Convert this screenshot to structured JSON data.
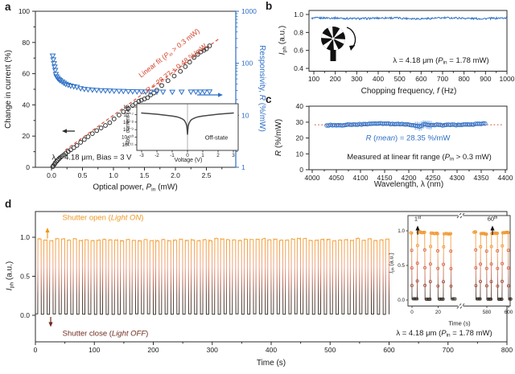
{
  "palette": {
    "blue": "#2d6fc6",
    "red": "#d6452e",
    "orange": "#f09a38",
    "orange_text": "#f0971f",
    "maroon": "#6e2a1c",
    "dark": "#1a1a1a",
    "frame": "#2b2b2b",
    "error_bar": "#adc8ec",
    "inset_curve": "#474747",
    "wave_bottom": "#3b352f",
    "wave_mid": "#c4705a",
    "wave_top": "#f4a033"
  },
  "text": {
    "a": {
      "letter": "a",
      "ylabel_left": [
        [
          "Change in current (%)",
          ""
        ]
      ],
      "ylabel_right": [
        [
          "Responsivity, ",
          ""
        ],
        [
          "R",
          "i"
        ],
        [
          " (%/mW)",
          ""
        ]
      ],
      "xlabel": [
        [
          "Optical power, ",
          ""
        ],
        [
          "P",
          "i"
        ],
        [
          "in",
          "sub"
        ],
        [
          " (mW)",
          ""
        ]
      ],
      "fit1": [
        [
          "Linear fit (",
          ""
        ],
        [
          "P",
          "i"
        ],
        [
          "in",
          "sub"
        ],
        [
          " > 0.3 mW)",
          ""
        ]
      ],
      "fit2": [
        [
          "R",
          "i"
        ],
        [
          " = 28.77 ± 0.48 %/mW",
          ""
        ]
      ],
      "bias": [
        [
          "λ = 4.18 μm, Bias = 3 V",
          ""
        ]
      ],
      "inset_ylabel": [
        [
          "Abs. current (A)",
          ""
        ]
      ],
      "inset_xlabel": [
        [
          "Voltage (V)",
          ""
        ]
      ],
      "inset_note": [
        [
          "Off-state",
          ""
        ]
      ]
    },
    "b": {
      "letter": "b",
      "ylabel": [
        [
          "I",
          "i"
        ],
        [
          "ph",
          "sub"
        ],
        [
          " (a.u.)",
          ""
        ]
      ],
      "xlabel": [
        [
          "Chopping frequency, ",
          ""
        ],
        [
          "f",
          "i"
        ],
        [
          " (Hz)",
          ""
        ]
      ],
      "note": [
        [
          "λ = 4.18 μm (",
          ""
        ],
        [
          "P",
          "i"
        ],
        [
          "in",
          "sub"
        ],
        [
          " = 1.78 mW)",
          ""
        ]
      ]
    },
    "c": {
      "letter": "c",
      "ylabel": [
        [
          "R",
          "i"
        ],
        [
          " (%/mW)",
          ""
        ]
      ],
      "xlabel": [
        [
          "Wavelength, λ (nm)",
          ""
        ]
      ],
      "mean": [
        [
          "R",
          "i"
        ],
        [
          " (",
          ""
        ],
        [
          "mean",
          "i"
        ],
        [
          ") = 28.35 %/mW",
          ""
        ]
      ],
      "note": [
        [
          "Measured at linear fit range (",
          ""
        ],
        [
          "P",
          "i"
        ],
        [
          "in",
          "sub"
        ],
        [
          " > 0.3 mW)",
          ""
        ]
      ]
    },
    "d": {
      "letter": "d",
      "ylabel": [
        [
          "I",
          "i"
        ],
        [
          "ph",
          "sub"
        ],
        [
          " (a.u.)",
          ""
        ]
      ],
      "xlabel": [
        [
          "Time (s)",
          ""
        ]
      ],
      "open": [
        [
          "Shutter open (",
          ""
        ],
        [
          "Light ON",
          "i"
        ],
        [
          ")",
          ""
        ]
      ],
      "close": [
        [
          "Shutter close (",
          ""
        ],
        [
          "Light OFF",
          "i"
        ],
        [
          ")",
          ""
        ]
      ],
      "note": [
        [
          "λ = 4.18 μm (",
          ""
        ],
        [
          "P",
          "i"
        ],
        [
          "in",
          "sub"
        ],
        [
          " = 1.78 mW)",
          ""
        ]
      ],
      "inset_ylabel": [
        [
          "I",
          "i"
        ],
        [
          "ph",
          "sub"
        ],
        [
          " (a.u.)",
          ""
        ]
      ],
      "inset_xlabel": [
        [
          "Time (s)",
          ""
        ]
      ],
      "first": [
        [
          "1",
          ""
        ],
        [
          "st",
          "sup"
        ]
      ],
      "sixtieth": [
        [
          "60",
          ""
        ],
        [
          "th",
          "sup"
        ]
      ]
    }
  },
  "chart_data": {
    "panel_a": {
      "type": "scatter",
      "x_ticks": [
        0,
        0.5,
        1,
        1.5,
        2,
        2.5
      ],
      "x_tick_labels": [
        "0.0",
        "0.5",
        "1.0",
        "1.5",
        "2.0",
        "2.5"
      ],
      "y_left_ticks": [
        0,
        20,
        40,
        60,
        80,
        100
      ],
      "y_right_scale": "log",
      "y_right_ticks": [
        1,
        10,
        100,
        1000
      ],
      "series": [
        {
          "name": "change_in_current_pct",
          "marker": "circle",
          "axis": "left",
          "points": [
            [
              0.02,
              0.4
            ],
            [
              0.03,
              1.1
            ],
            [
              0.05,
              2.0
            ],
            [
              0.06,
              2.8
            ],
            [
              0.08,
              3.7
            ],
            [
              0.1,
              4.6
            ],
            [
              0.12,
              5.4
            ],
            [
              0.14,
              6.2
            ],
            [
              0.17,
              7.1
            ],
            [
              0.2,
              8.0
            ],
            [
              0.23,
              9.0
            ],
            [
              0.27,
              10.1
            ],
            [
              0.31,
              11.2
            ],
            [
              0.36,
              12.6
            ],
            [
              0.41,
              14.0
            ],
            [
              0.47,
              16.0
            ],
            [
              0.53,
              17.8
            ],
            [
              0.59,
              19.6
            ],
            [
              0.66,
              21.6
            ],
            [
              0.73,
              23.5
            ],
            [
              0.8,
              25.2
            ],
            [
              0.87,
              26.8
            ],
            [
              0.94,
              28.6
            ],
            [
              1.01,
              31.0
            ],
            [
              1.09,
              33.5
            ],
            [
              1.16,
              35.6
            ],
            [
              1.24,
              37.6
            ],
            [
              1.31,
              39.6
            ],
            [
              1.36,
              41.0
            ],
            [
              1.41,
              42.4
            ],
            [
              1.45,
              43.0
            ],
            [
              1.5,
              43.8
            ],
            [
              1.55,
              44.6
            ],
            [
              1.6,
              46.4
            ],
            [
              1.65,
              47.6
            ],
            [
              1.7,
              49.4
            ],
            [
              1.78,
              52.4
            ],
            [
              1.88,
              55.5
            ],
            [
              1.98,
              58.5
            ],
            [
              2.08,
              61.5
            ],
            [
              2.16,
              64.5
            ],
            [
              2.23,
              67.4
            ],
            [
              2.3,
              70.4
            ],
            [
              2.36,
              72.4
            ],
            [
              2.41,
              73.9
            ],
            [
              2.46,
              75.0
            ],
            [
              2.5,
              75.9
            ],
            [
              2.55,
              77.8
            ]
          ]
        },
        {
          "name": "responsivity_pct_per_mW",
          "marker": "triangle-down",
          "axis": "right",
          "points": [
            [
              0.02,
              140
            ],
            [
              0.03,
              118
            ],
            [
              0.04,
              100
            ],
            [
              0.05,
              86
            ],
            [
              0.06,
              74
            ],
            [
              0.07,
              62
            ],
            [
              0.08,
              56
            ],
            [
              0.1,
              52
            ],
            [
              0.12,
              49
            ],
            [
              0.14,
              47
            ],
            [
              0.17,
              44.5
            ],
            [
              0.2,
              42
            ],
            [
              0.23,
              40
            ],
            [
              0.27,
              38.5
            ],
            [
              0.31,
              37
            ],
            [
              0.36,
              36
            ],
            [
              0.41,
              35
            ],
            [
              0.47,
              33
            ],
            [
              0.53,
              32
            ],
            [
              0.59,
              31.5
            ],
            [
              0.66,
              31
            ],
            [
              0.73,
              30.6
            ],
            [
              0.8,
              30.2
            ],
            [
              0.87,
              30
            ],
            [
              0.94,
              29.8
            ],
            [
              1.01,
              29.5
            ],
            [
              1.09,
              29.3
            ],
            [
              1.16,
              29.2
            ],
            [
              1.24,
              29
            ],
            [
              1.31,
              28.8
            ],
            [
              1.38,
              28.7
            ],
            [
              1.45,
              28.6
            ],
            [
              1.52,
              28.4
            ],
            [
              1.6,
              28.3
            ],
            [
              1.7,
              28.4
            ],
            [
              1.8,
              28.3
            ],
            [
              1.95,
              28.2
            ],
            [
              2.1,
              28.3
            ],
            [
              2.25,
              28.4
            ],
            [
              2.33,
              28.5
            ],
            [
              2.4,
              28.4
            ],
            [
              2.47,
              28.5
            ],
            [
              2.55,
              28.6
            ]
          ]
        }
      ],
      "linear_fit": {
        "slope": 28.77,
        "intercept": 4.6,
        "x_range": [
          0.22,
          2.72
        ]
      },
      "inset": {
        "type": "line",
        "x_ticks": [
          -3,
          -2,
          -1,
          0,
          1,
          2,
          3
        ],
        "y_tick_labels": [
          "10⁻⁶",
          "10⁻⁷",
          "10⁻⁸",
          "10⁻⁹",
          "10⁻¹⁰",
          "10⁻¹¹"
        ],
        "points": [
          [
            -3,
            1.6e-07
          ],
          [
            -2.5,
            1.35e-07
          ],
          [
            -2,
            1.1e-07
          ],
          [
            -1.5,
            8.5e-08
          ],
          [
            -1,
            6.5e-08
          ],
          [
            -0.7,
            5e-08
          ],
          [
            -0.5,
            3.8e-08
          ],
          [
            -0.3,
            2.4e-08
          ],
          [
            -0.2,
            1.6e-08
          ],
          [
            -0.1,
            7e-09
          ],
          [
            -0.05,
            3e-09
          ],
          [
            -0.02,
            8e-10
          ],
          [
            0,
            2.2e-10
          ],
          [
            0.02,
            8e-10
          ],
          [
            0.05,
            3e-09
          ],
          [
            0.1,
            7e-09
          ],
          [
            0.2,
            1.6e-08
          ],
          [
            0.3,
            2.4e-08
          ],
          [
            0.5,
            3.8e-08
          ],
          [
            0.7,
            5e-08
          ],
          [
            1,
            6.5e-08
          ],
          [
            1.5,
            8.5e-08
          ],
          [
            2,
            1.1e-07
          ],
          [
            2.5,
            1.35e-07
          ],
          [
            3,
            1.6e-07
          ]
        ]
      }
    },
    "panel_b": {
      "type": "line",
      "x_range": [
        90,
        1000
      ],
      "x_ticks": [
        100,
        200,
        300,
        400,
        500,
        600,
        700,
        800,
        900,
        1000
      ],
      "y_ticks": [
        0.4,
        0.6,
        0.8,
        1.0
      ],
      "y_tick_labels": [
        "0.4",
        "0.6",
        "0.8",
        "1.0"
      ],
      "baseline": 0.958,
      "noise_amplitude": 0.011,
      "n_points": 300
    },
    "panel_c": {
      "type": "scatter",
      "x_ticks": [
        4000,
        4050,
        4100,
        4150,
        4200,
        4250,
        4300,
        4350,
        4400
      ],
      "y_ticks": [
        0,
        10,
        20,
        30,
        40
      ],
      "mean_value": 28.35,
      "mean_line_x_range": [
        4005,
        4395
      ],
      "data_x_range": [
        4030,
        4358
      ],
      "sample_step_nm": 4,
      "error_base": 0.8,
      "error_dip_region": [
        4212,
        4250
      ],
      "error_dip_extra": 1.9,
      "anchors": [
        [
          4030,
          28.0
        ],
        [
          4045,
          28.2
        ],
        [
          4060,
          28.1
        ],
        [
          4075,
          28.4
        ],
        [
          4090,
          28.5
        ],
        [
          4105,
          28.7
        ],
        [
          4120,
          29.0
        ],
        [
          4135,
          29.3
        ],
        [
          4150,
          29.1
        ],
        [
          4165,
          28.9
        ],
        [
          4180,
          28.8
        ],
        [
          4195,
          28.6
        ],
        [
          4210,
          28.2
        ],
        [
          4222,
          27.2
        ],
        [
          4232,
          28.9
        ],
        [
          4245,
          27.9
        ],
        [
          4258,
          28.3
        ],
        [
          4270,
          28.1
        ],
        [
          4285,
          28.4
        ],
        [
          4300,
          28.2
        ],
        [
          4315,
          28.4
        ],
        [
          4330,
          28.6
        ],
        [
          4345,
          28.8
        ],
        [
          4358,
          29.3
        ]
      ]
    },
    "panel_d": {
      "type": "line",
      "x_ticks": [
        0,
        100,
        200,
        300,
        400,
        500,
        600,
        700,
        800
      ],
      "y_ticks": [
        0,
        0.5,
        1.0
      ],
      "y_tick_labels": [
        "0.0",
        "0.5",
        "1.0"
      ],
      "square_wave": {
        "cycles": 60,
        "period_s": 10,
        "off_duration_s": 4,
        "rise_s": 0.3,
        "on_level": 0.97,
        "off_level": 0.015,
        "on_jitter": 0.016
      },
      "inset": {
        "windows_s": [
          [
            -1.5,
            33.5
          ],
          [
            567.5,
            602.5
          ]
        ],
        "x_ticks_left": [
          0,
          20
        ],
        "x_ticks_right": [
          580,
          600
        ],
        "y_tick_labels": [
          "0.0",
          "0.5",
          "1.0"
        ]
      }
    }
  }
}
